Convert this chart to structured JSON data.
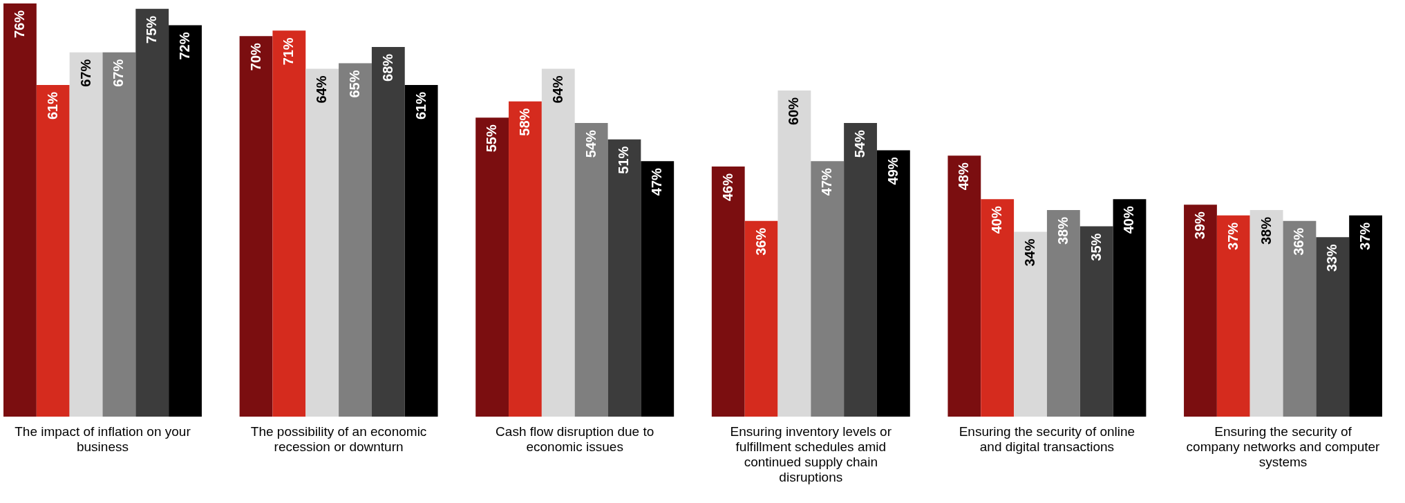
{
  "chart_data": {
    "type": "bar",
    "categories": [
      "The impact of inflation on your business",
      "The possibility of an economic recession or downturn",
      "Cash flow disruption due to economic issues",
      "Ensuring inventory levels or fulfillment schedules amid continued supply chain disruptions",
      "Ensuring the security of online and digital transactions",
      "Ensuring the security of company networks and computer systems"
    ],
    "series": [
      {
        "color": "#7b0e10",
        "values": [
          76,
          70,
          55,
          46,
          48,
          39
        ],
        "value_labels": [
          "76%",
          "70%",
          "55%",
          "46%",
          "48%",
          "39%"
        ]
      },
      {
        "color": "#d52b1e",
        "values": [
          61,
          71,
          58,
          36,
          40,
          37
        ],
        "value_labels": [
          "61%",
          "71%",
          "58%",
          "36%",
          "40%",
          "37%"
        ]
      },
      {
        "color": "#d9d9d9",
        "values": [
          67,
          64,
          64,
          60,
          34,
          38
        ],
        "value_labels": [
          "67%",
          "64%",
          "64%",
          "60%",
          "34%",
          "38%"
        ]
      },
      {
        "color": "#7f7f7f",
        "values": [
          67,
          65,
          54,
          47,
          38,
          36
        ],
        "value_labels": [
          "67%",
          "65%",
          "54%",
          "47%",
          "38%",
          "36%"
        ]
      },
      {
        "color": "#3c3c3c",
        "values": [
          75,
          68,
          51,
          54,
          35,
          33
        ],
        "value_labels": [
          "75%",
          "68%",
          "51%",
          "54%",
          "35%",
          "33%"
        ]
      },
      {
        "color": "#000000",
        "values": [
          72,
          61,
          47,
          49,
          40,
          37
        ],
        "value_labels": [
          "72%",
          "61%",
          "47%",
          "49%",
          "40%",
          "37%"
        ]
      }
    ],
    "legend": false,
    "grid": false
  }
}
